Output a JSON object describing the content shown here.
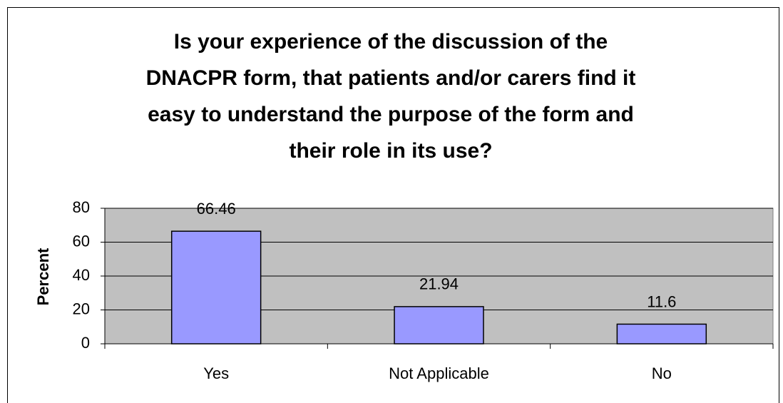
{
  "chart_data": {
    "type": "bar",
    "title": [
      "Is your experience of the discussion of the",
      "DNACPR form, that patients and/or carers find it",
      "easy to understand the purpose of the form and",
      "their role in its use?"
    ],
    "y_label": "Percent",
    "categories": [
      "Yes",
      "Not Applicable",
      "No"
    ],
    "values": [
      66.46,
      21.94,
      11.6
    ],
    "color": "#9999ff",
    "ylim": [
      0,
      80
    ],
    "yticks": [
      0,
      20,
      40,
      60,
      80
    ],
    "grid": true
  }
}
